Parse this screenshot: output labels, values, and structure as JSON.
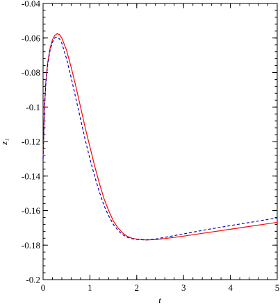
{
  "chart_data": {
    "type": "line",
    "title": "",
    "xlabel": "t",
    "ylabel": "z₁",
    "xlim": [
      0,
      5
    ],
    "ylim": [
      -0.2,
      -0.04
    ],
    "xticks": [
      0,
      1,
      2,
      3,
      4,
      5
    ],
    "xtick_labels": [
      "0",
      "1",
      "2",
      "3",
      "4",
      "5"
    ],
    "yticks": [
      -0.2,
      -0.18,
      -0.16,
      -0.14,
      -0.12,
      -0.1,
      -0.08,
      -0.06,
      -0.04
    ],
    "ytick_labels": [
      "-0.2",
      "-0.18",
      "-0.16",
      "-0.14",
      "-0.12",
      "-0.1",
      "-0.08",
      "-0.06",
      "-0.04"
    ],
    "grid": false,
    "series": [
      {
        "style": "solid",
        "color": "#ff0000",
        "x": [
          0,
          0.03,
          0.06,
          0.1,
          0.15,
          0.2,
          0.25,
          0.3,
          0.35,
          0.4,
          0.5,
          0.6,
          0.7,
          0.8,
          0.9,
          1.0,
          1.1,
          1.2,
          1.3,
          1.4,
          1.5,
          1.6,
          1.7,
          1.8,
          1.9,
          2.0,
          2.2,
          2.4,
          2.6,
          2.8,
          3.0,
          3.5,
          4.0,
          4.5,
          5.0
        ],
        "y": [
          -0.13,
          -0.1,
          -0.085,
          -0.074,
          -0.066,
          -0.061,
          -0.0585,
          -0.0575,
          -0.058,
          -0.06,
          -0.067,
          -0.077,
          -0.088,
          -0.1,
          -0.112,
          -0.123,
          -0.134,
          -0.144,
          -0.153,
          -0.16,
          -0.166,
          -0.17,
          -0.173,
          -0.175,
          -0.176,
          -0.1765,
          -0.177,
          -0.1768,
          -0.1762,
          -0.1755,
          -0.1748,
          -0.1728,
          -0.1708,
          -0.1688,
          -0.1668
        ]
      },
      {
        "style": "dashed",
        "color": "#0000cc",
        "x": [
          0,
          0.03,
          0.06,
          0.1,
          0.15,
          0.2,
          0.25,
          0.3,
          0.35,
          0.4,
          0.5,
          0.6,
          0.7,
          0.8,
          0.9,
          1.0,
          1.1,
          1.2,
          1.3,
          1.4,
          1.5,
          1.6,
          1.7,
          1.8,
          1.9,
          2.0,
          2.2,
          2.4,
          2.6,
          2.8,
          3.0,
          3.5,
          4.0,
          4.5,
          5.0
        ],
        "y": [
          -0.13,
          -0.1,
          -0.086,
          -0.075,
          -0.067,
          -0.0625,
          -0.06,
          -0.0595,
          -0.0605,
          -0.063,
          -0.072,
          -0.083,
          -0.095,
          -0.107,
          -0.119,
          -0.13,
          -0.14,
          -0.149,
          -0.157,
          -0.163,
          -0.168,
          -0.1715,
          -0.174,
          -0.1755,
          -0.1763,
          -0.1767,
          -0.177,
          -0.1765,
          -0.1755,
          -0.1745,
          -0.1735,
          -0.171,
          -0.1687,
          -0.1665,
          -0.1642
        ]
      }
    ]
  }
}
